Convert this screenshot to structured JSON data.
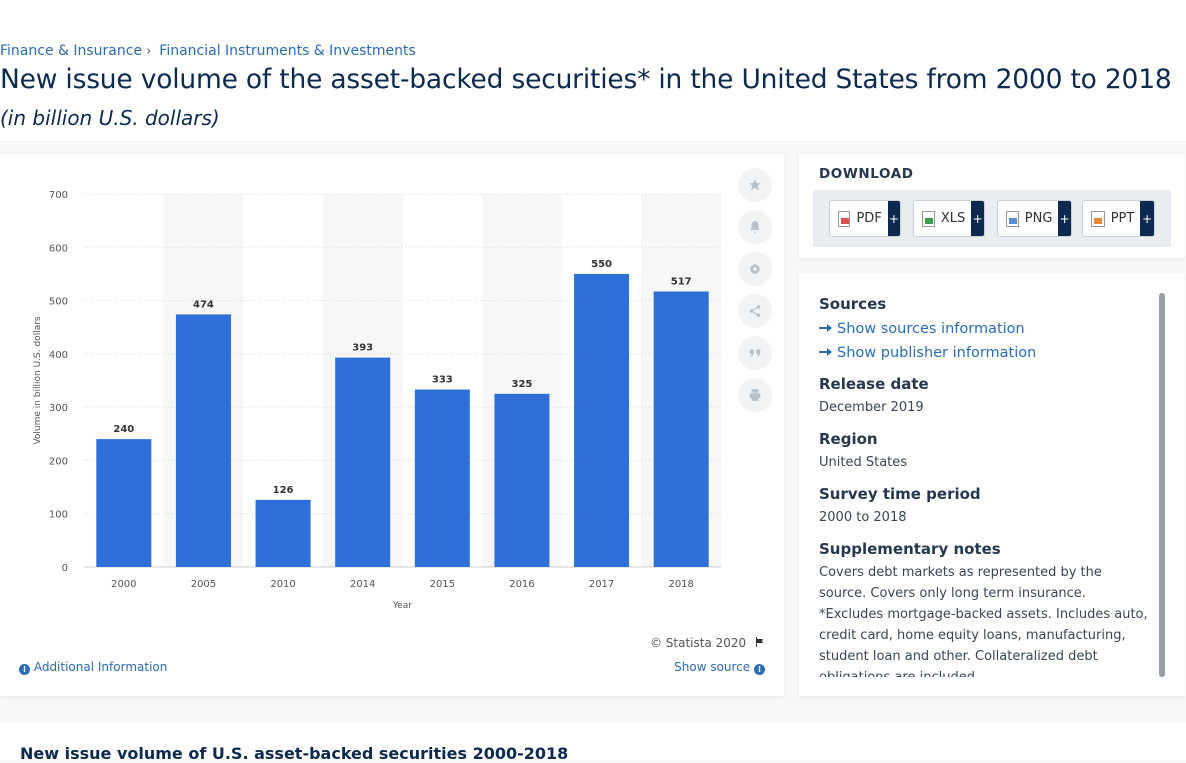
{
  "breadcrumb": {
    "items": [
      "Finance & Insurance",
      "Financial Instruments & Investments"
    ],
    "separator": "›"
  },
  "title": "New issue volume of the asset-backed securities* in the United States from 2000 to 2018",
  "subtitle": "(in billion U.S. dollars)",
  "chart_data": {
    "type": "bar",
    "categories": [
      "2000",
      "2005",
      "2010",
      "2014",
      "2015",
      "2016",
      "2017",
      "2018"
    ],
    "values": [
      240,
      474,
      126,
      393,
      333,
      325,
      550,
      517
    ],
    "data_labels": [
      "240",
      "474",
      "126",
      "393",
      "333",
      "325",
      "550",
      "517"
    ],
    "xlabel": "Year",
    "ylabel": "Volume in billion U.S. dollars",
    "ylim": [
      0,
      700
    ],
    "yticks": [
      "0",
      "100",
      "200",
      "300",
      "400",
      "500",
      "600",
      "700"
    ],
    "grid": true,
    "bar_color": "#2e6fd8"
  },
  "tools": [
    "star-icon",
    "bell-icon",
    "gear-icon",
    "share-icon",
    "quote-icon",
    "print-icon"
  ],
  "chart_footer": {
    "copyright": "© Statista 2020",
    "additional_info": "Additional Information",
    "show_source": "Show source"
  },
  "download": {
    "title": "DOWNLOAD",
    "buttons": [
      {
        "label": "PDF",
        "icon": "pdf-file-icon"
      },
      {
        "label": "XLS",
        "icon": "xls-file-icon"
      },
      {
        "label": "PNG",
        "icon": "png-file-icon"
      },
      {
        "label": "PPT",
        "icon": "ppt-file-icon"
      }
    ],
    "plus": "+"
  },
  "info": {
    "sources_head": "Sources",
    "show_sources": "Show sources information",
    "show_publisher": "Show publisher information",
    "release_head": "Release date",
    "release_val": "December 2019",
    "region_head": "Region",
    "region_val": "United States",
    "survey_head": "Survey time period",
    "survey_val": "2000 to 2018",
    "notes_head": "Supplementary notes",
    "notes_val": "Covers debt markets as represented by the source. Covers only long term insurance. *Excludes mortgage-backed assets. Includes auto, credit card, home equity loans, manufacturing, student loan and other. Collateralized debt obligations are included."
  },
  "bottom_title": "New issue volume of U.S. asset-backed securities 2000-2018"
}
